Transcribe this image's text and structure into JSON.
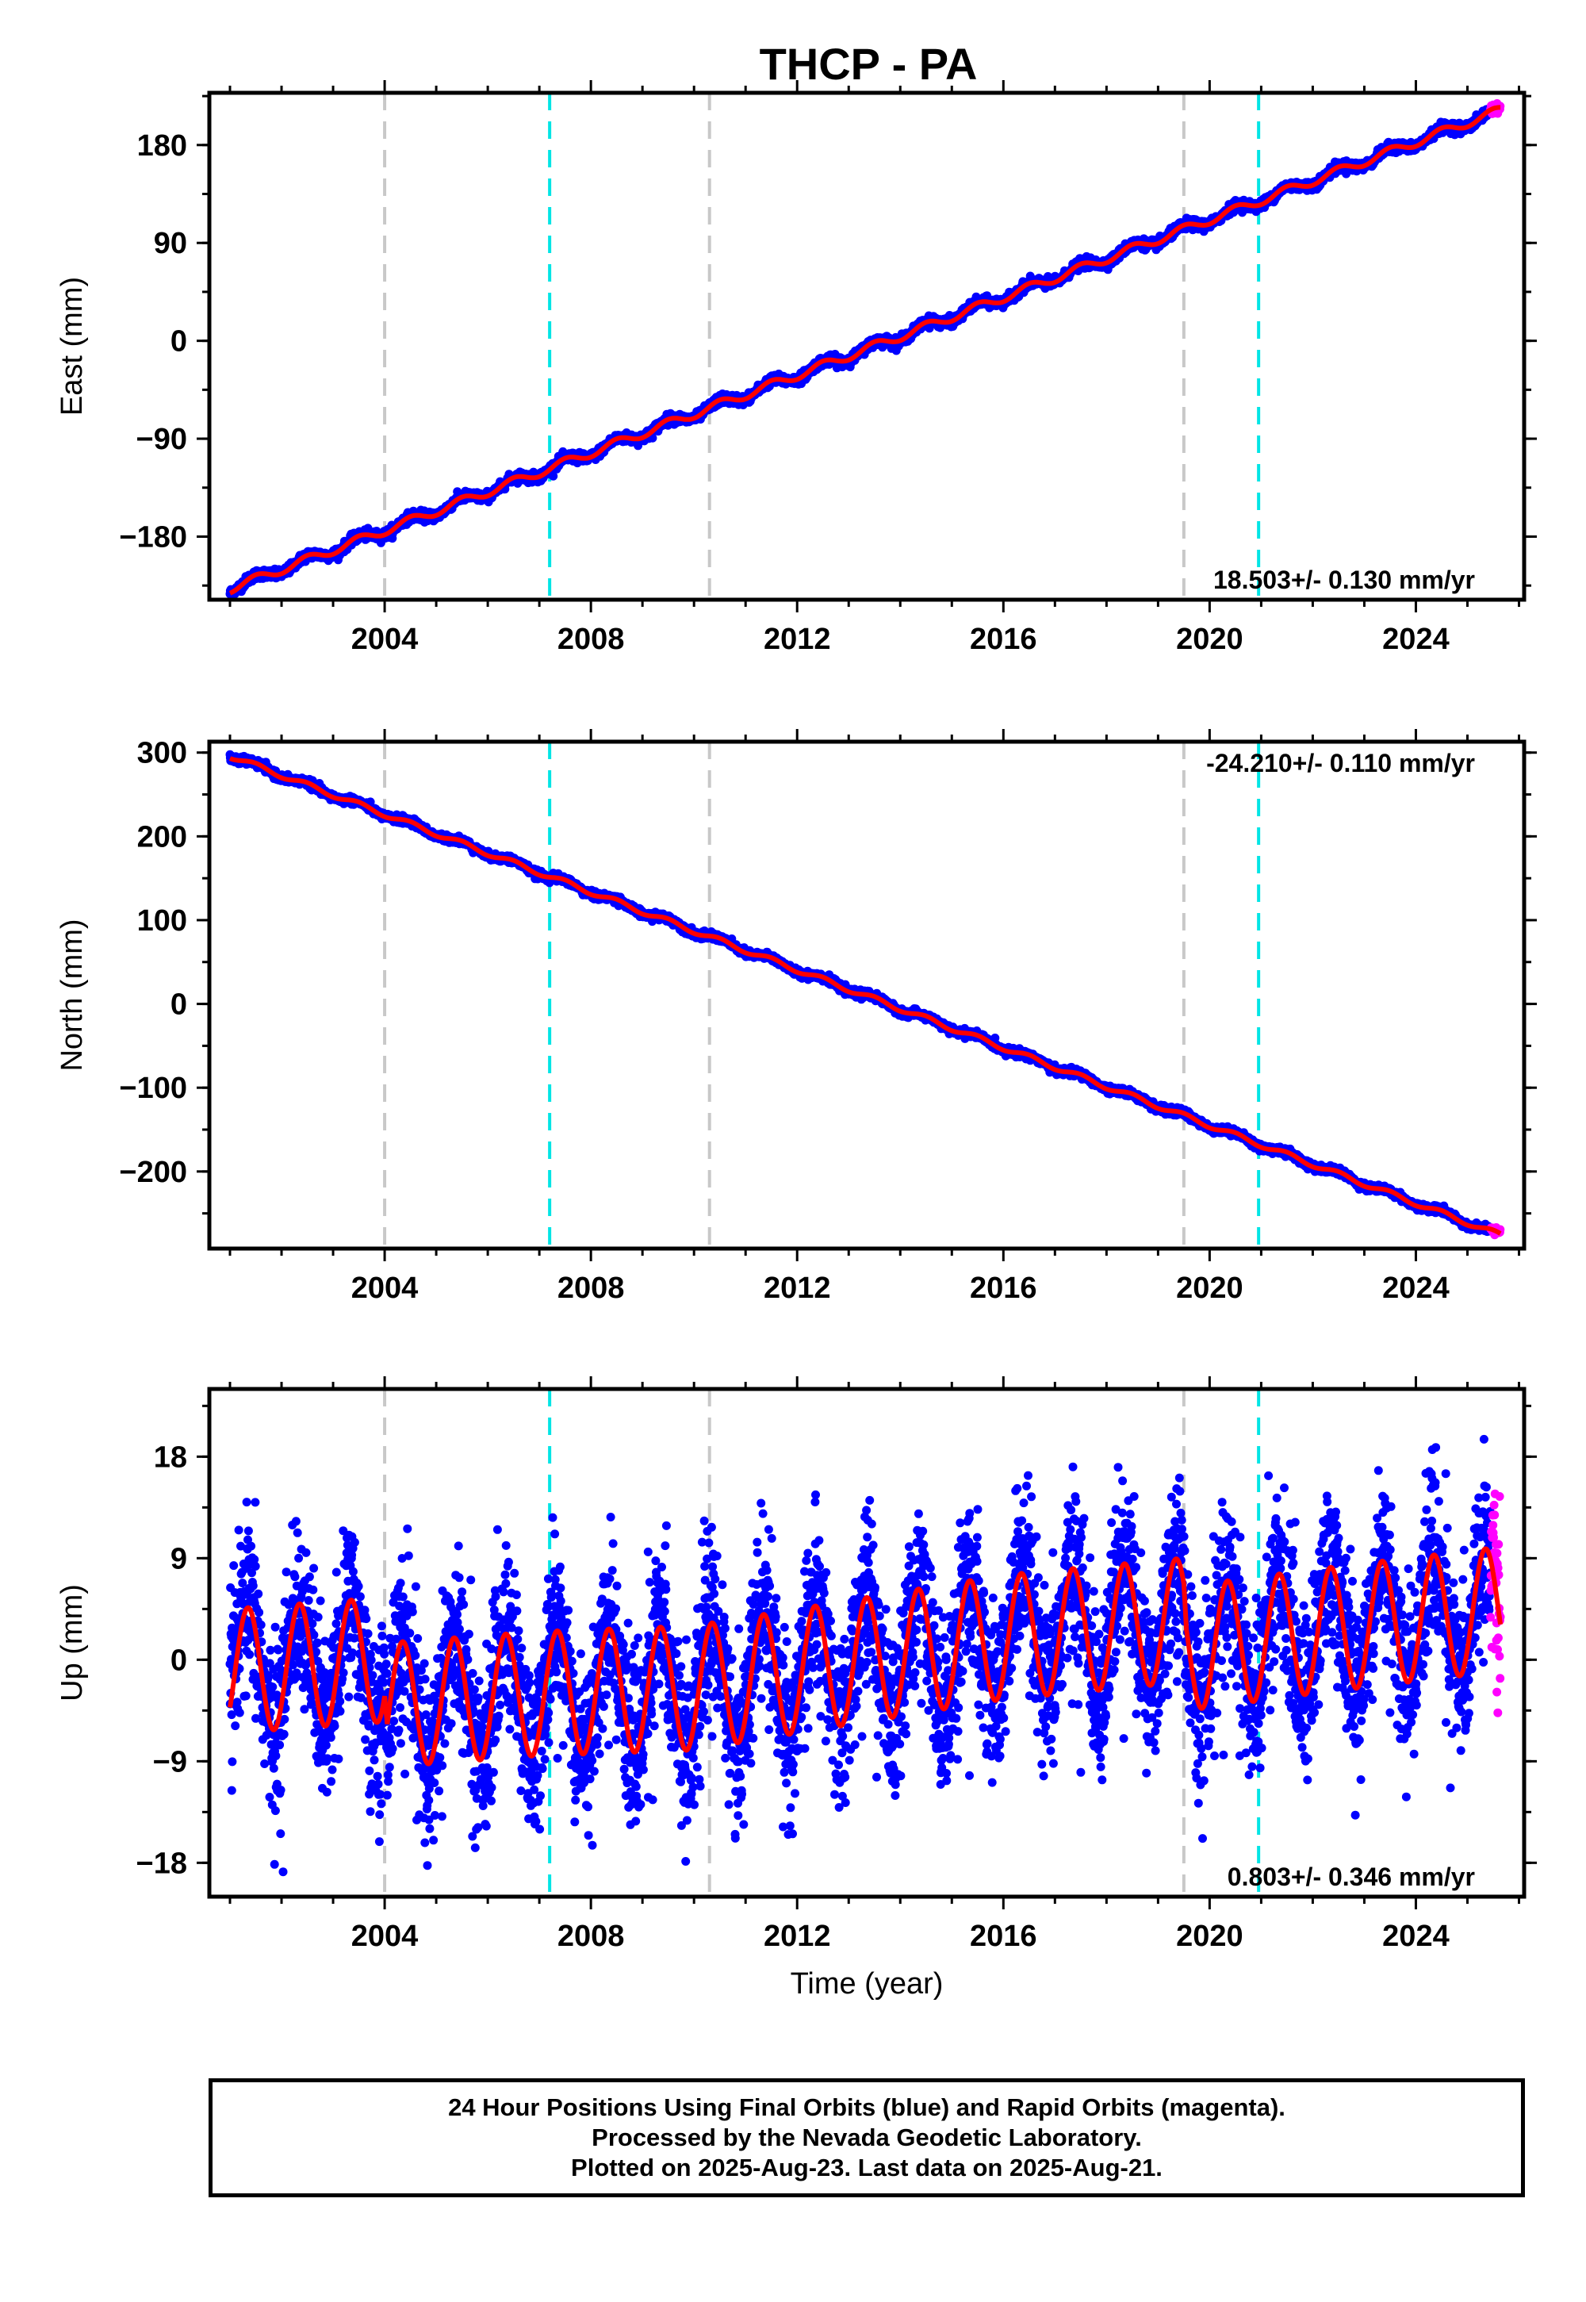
{
  "title": "THCP - PA",
  "colors": {
    "final_orbits": "#0000ff",
    "rapid_orbits": "#ff00ff",
    "model": "#ff0000",
    "equipment_change": "#c8c8c8",
    "earthquake": "#00e5e5"
  },
  "footer": {
    "line1": "24 Hour Positions Using Final Orbits (blue) and Rapid Orbits (magenta).",
    "line2": "Processed by the Nevada Geodetic Laboratory.",
    "line3": "Plotted on 2025-Aug-23. Last data on 2025-Aug-21."
  },
  "chart_data": [
    {
      "type": "scatter",
      "panel": "east",
      "ylabel": "East (mm)",
      "xlabel": "",
      "xlim": [
        2000.6,
        2026.1
      ],
      "ylim": [
        -238,
        228
      ],
      "xticks": [
        2004,
        2008,
        2012,
        2016,
        2020,
        2024
      ],
      "yticks": [
        -180,
        -90,
        0,
        90,
        180
      ],
      "ytick_labels": [
        "−180",
        "−90",
        "0",
        "90",
        "180"
      ],
      "rate_text": "18.503+/- 0.130 mm/yr",
      "rate_position": "bottom-right",
      "start": [
        2001.0,
        -228
      ],
      "end": [
        2025.64,
        212
      ],
      "annual_amplitude": 4,
      "noise": 2.2,
      "vlines_gray": [
        2004.0,
        2010.3,
        2019.5
      ],
      "vlines_cyan": [
        2007.2,
        2020.95
      ],
      "series": [
        {
          "name": "Final Orbits",
          "color": "blue",
          "x_range": [
            2001.0,
            2025.45
          ]
        },
        {
          "name": "Rapid Orbits",
          "color": "magenta",
          "x_range": [
            2025.45,
            2025.64
          ]
        }
      ]
    },
    {
      "type": "scatter",
      "panel": "north",
      "ylabel": "North (mm)",
      "xlabel": "",
      "xlim": [
        2000.6,
        2026.1
      ],
      "ylim": [
        -292,
        313
      ],
      "xticks": [
        2004,
        2008,
        2012,
        2016,
        2020,
        2024
      ],
      "yticks": [
        -200,
        -100,
        0,
        100,
        200,
        300
      ],
      "ytick_labels": [
        "−200",
        "−100",
        "0",
        "100",
        "200",
        "300"
      ],
      "rate_text": "-24.210+/- 0.110 mm/yr",
      "rate_position": "top-right",
      "start": [
        2001.0,
        296
      ],
      "end": [
        2025.64,
        -276
      ],
      "annual_amplitude": 3,
      "noise": 2.2,
      "vlines_gray": [
        2004.0,
        2010.3,
        2019.5
      ],
      "vlines_cyan": [
        2007.2,
        2020.95
      ],
      "series": [
        {
          "name": "Final Orbits",
          "color": "blue",
          "x_range": [
            2001.0,
            2025.45
          ]
        },
        {
          "name": "Rapid Orbits",
          "color": "magenta",
          "x_range": [
            2025.45,
            2025.64
          ]
        }
      ]
    },
    {
      "type": "scatter",
      "panel": "up",
      "ylabel": "Up (mm)",
      "xlabel": "Time (year)",
      "xlim": [
        2000.6,
        2026.1
      ],
      "ylim": [
        -21,
        24
      ],
      "xticks": [
        2004,
        2008,
        2012,
        2016,
        2020,
        2024
      ],
      "yticks": [
        -18,
        -9,
        0,
        9,
        18
      ],
      "ytick_labels": [
        "−18",
        "−9",
        "0",
        "9",
        "18"
      ],
      "rate_text": "0.803+/- 0.346 mm/yr",
      "rate_position": "bottom-right",
      "model_baseline": [
        [
          2001.0,
          -1.0
        ],
        [
          2004.0,
          0.0
        ],
        [
          2004.05,
          -4.0
        ],
        [
          2007.0,
          -3.0
        ],
        [
          2010.0,
          -2.5
        ],
        [
          2012.0,
          -1.0
        ],
        [
          2016.0,
          2.0
        ],
        [
          2019.5,
          3.5
        ],
        [
          2019.55,
          1.0
        ],
        [
          2022.0,
          2.5
        ],
        [
          2025.64,
          4.5
        ]
      ],
      "annual_amplitude": 5.5,
      "noise": 3.6,
      "vlines_gray": [
        2004.0,
        2010.3,
        2019.5
      ],
      "vlines_cyan": [
        2007.2,
        2020.95
      ],
      "series": [
        {
          "name": "Final Orbits",
          "color": "blue",
          "x_range": [
            2001.0,
            2025.45
          ]
        },
        {
          "name": "Rapid Orbits",
          "color": "magenta",
          "x_range": [
            2025.45,
            2025.64
          ]
        }
      ]
    }
  ]
}
